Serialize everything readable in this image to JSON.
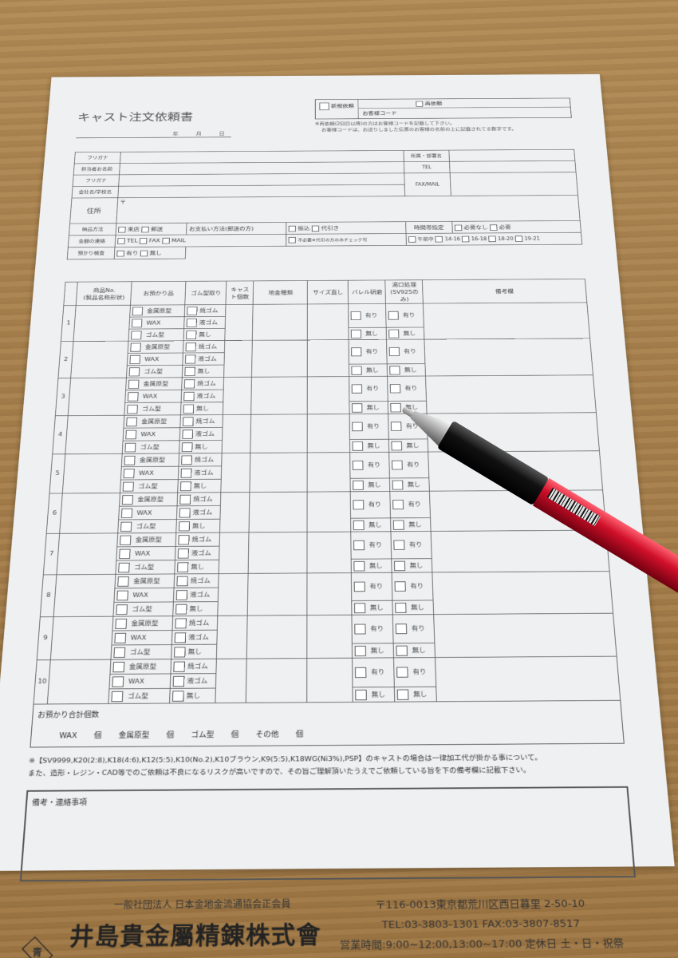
{
  "form": {
    "title": "キャスト注文依頼書",
    "date_label": "年 月 日",
    "new_request": "新規依頼",
    "repeat_request": "再依頼",
    "customer_code": "お客様コード",
    "note_lines": [
      "※再依頼(2回目以降)の方はお客様コードを記載して下さい。",
      "お客様コードは、お送りしました伝票のお客様の名前の上に記載されてる数字です。"
    ]
  },
  "info": {
    "furigana": "フリガナ",
    "contact_name": "担当者お名前",
    "company": "会社名/学校名",
    "address": "住所",
    "postal": "〒",
    "dept": "所属・部署名",
    "tel": "TEL",
    "faxmail": "FAX/MAIL",
    "delivery": "納品方法",
    "delivery_opts": [
      "来店",
      "郵送"
    ],
    "payment": "お支払い方法(郵送の方)",
    "payment_opts": [
      "振込",
      "代引き"
    ],
    "time_label": "時間帯指定",
    "time_opts": [
      "必要なし",
      "必要"
    ],
    "price_contact": "金額の連絡",
    "contact_opts": [
      "TEL",
      "FAX",
      "MAIL"
    ],
    "not_needed": "不必要※代引の方のみチェック可",
    "slots": [
      "午前中",
      "14-16",
      "16-18",
      "18-20",
      "19-21"
    ],
    "deposit_check": "預かり検査",
    "deposit_opts": [
      "有り",
      "無し"
    ]
  },
  "table": {
    "headers": [
      "",
      "商品No.\n(製品名称形状)",
      "お預かり品",
      "ゴム型取り",
      "キャスト個数",
      "地金種類",
      "サイズ直し",
      "バレル研磨",
      "湯口処理\n(SV925のみ)",
      "備考欄"
    ],
    "items": [
      "金属原型",
      "WAX",
      "ゴム型"
    ],
    "rubber": [
      "焼ゴム",
      "液ゴム",
      "無し"
    ],
    "yes": "有り",
    "no": "無し",
    "rows": [
      "1",
      "2",
      "3",
      "4",
      "5",
      "6",
      "7",
      "8",
      "9",
      "10"
    ]
  },
  "totals": {
    "label": "お預かり合計個数",
    "items": [
      "WAX",
      "個",
      "金属原型",
      "個",
      "ゴム型",
      "個",
      "その他",
      "個"
    ]
  },
  "notes": [
    "※【SV9999,K20(2:8),K18(4:6),K12(5:5),K10(No.2),K10ブラウン,K9(5:5),K18WG(Ni3%),PSP】のキャストの場合は一律加工代が掛かる事について。",
    "また、造形・レジン・CAD等でのご依頼は不良になるリスクが高いですので、その旨ご理解頂いたうえでご依頼している旨を下の備考欄に記載下さい。"
  ],
  "remarks_label": "備考・連絡事項",
  "footer": {
    "association": "一般社団法人 日本金地金流通協会正会員",
    "logo_mark": "青",
    "company": "井島貴金屬精錬株式會社",
    "address": "〒116-0013東京都荒川区西日暮里 2-50-10",
    "phone": "TEL:03-3803-1301 FAX:03-3807-8517",
    "hours": "営業時間:9:00~12:00,13:00~17:00 定休日 土・日・祝祭日"
  },
  "colors": {
    "pen_barrel": "#d0102a",
    "pen_grip": "#111111",
    "wood": "#a67f4c"
  }
}
